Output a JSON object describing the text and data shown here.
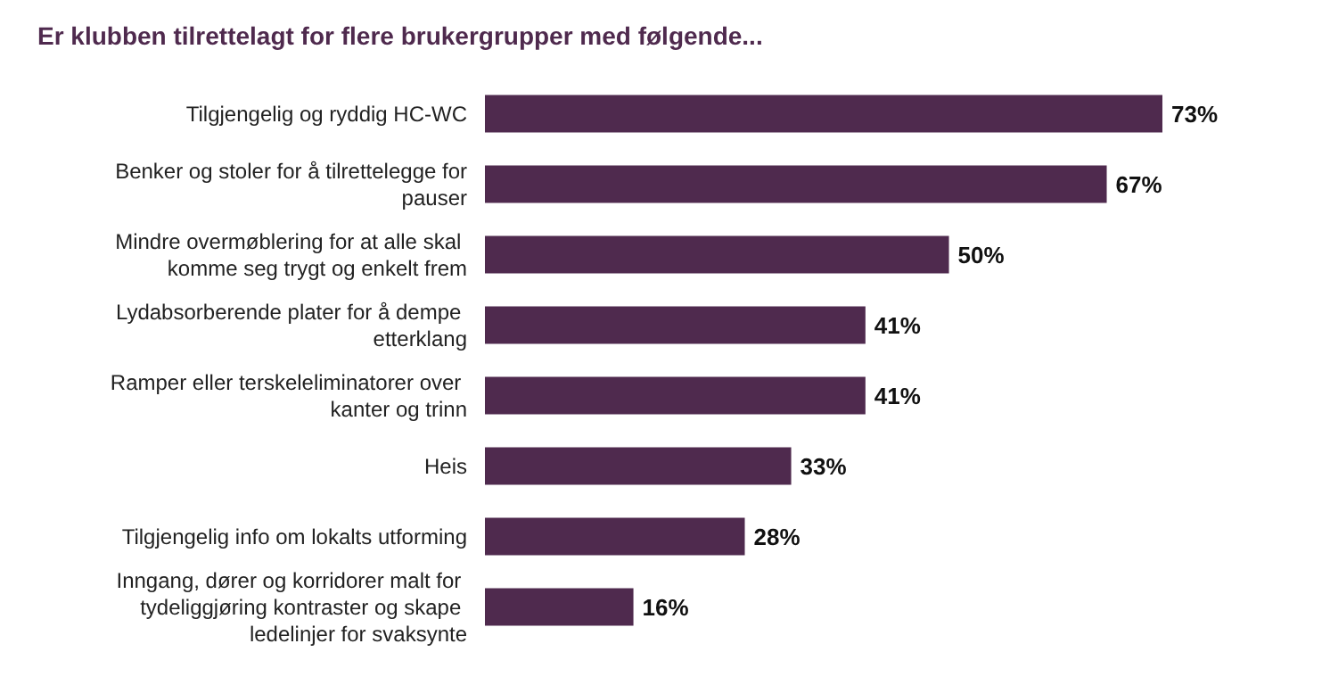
{
  "chart_data": {
    "type": "bar",
    "orientation": "horizontal",
    "title": "Er klubben tilrettelagt for flere brukergrupper med følgende...",
    "categories": [
      "Tilgjengelig og ryddig HC-WC",
      "Benker og stoler for å tilrettelegge for pauser",
      "Mindre overmøblering for at alle skal komme seg trygt og enkelt frem",
      "Lydabsorberende plater for å dempe etterklang",
      "Ramper eller terskeleliminatorer over kanter og trinn",
      "Heis",
      "Tilgjengelig info om lokalts utforming",
      "Inngang, dører og korridorer malt for tydeliggjøring kontraster og skape ledelinjer for svaksynte"
    ],
    "values": [
      73,
      67,
      50,
      41,
      41,
      33,
      28,
      16
    ],
    "value_labels": [
      "73%",
      "67%",
      "50%",
      "41%",
      "41%",
      "33%",
      "28%",
      "16%"
    ],
    "color": "#4f2a4e"
  }
}
